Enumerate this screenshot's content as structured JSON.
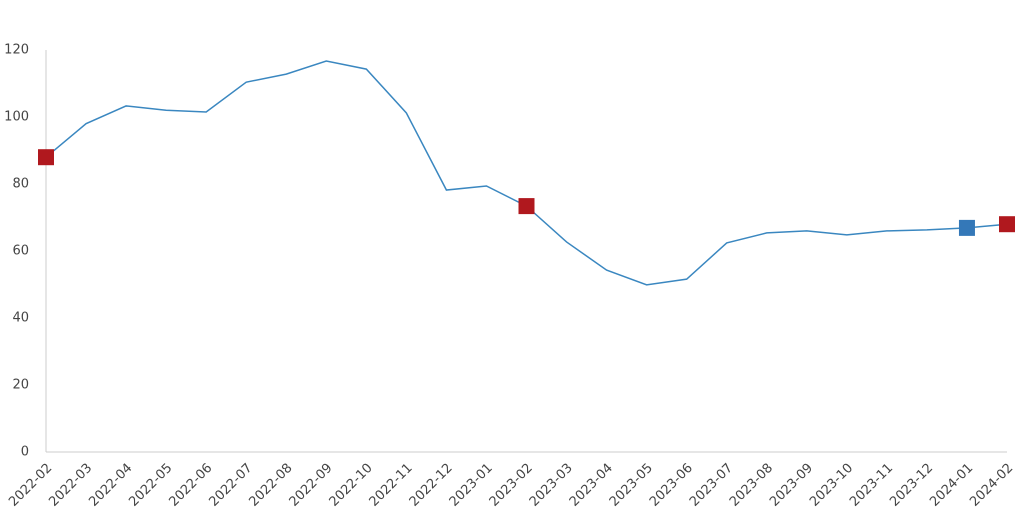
{
  "chart_data": {
    "type": "line",
    "categories": [
      "2022-02",
      "2022-03",
      "2022-04",
      "2022-05",
      "2022-06",
      "2022-07",
      "2022-08",
      "2022-09",
      "2022-10",
      "2022-11",
      "2022-12",
      "2023-01",
      "2023-02",
      "2023-03",
      "2023-04",
      "2023-05",
      "2023-06",
      "2023-07",
      "2023-08",
      "2023-09",
      "2023-10",
      "2023-11",
      "2023-12",
      "2024-01",
      "2024-02"
    ],
    "series": [
      {
        "color": "#3a87c0",
        "values": [
          88,
          98,
          103.3,
          102,
          101.5,
          110.4,
          112.8,
          116.7,
          114.3,
          101.2,
          78.2,
          79.4,
          73.4,
          62.7,
          54.3,
          49.9,
          51.6,
          62.4,
          65.4,
          66,
          64.8,
          66,
          66.3,
          66.9,
          68
        ],
        "marker_colors": [
          "#b0181e",
          null,
          null,
          null,
          null,
          null,
          null,
          null,
          null,
          null,
          null,
          null,
          "#b0181e",
          null,
          null,
          null,
          null,
          null,
          null,
          null,
          null,
          null,
          null,
          "#3478b8",
          "#b0181e"
        ]
      }
    ],
    "ylim": [
      0,
      120
    ],
    "yticks": [
      0,
      20,
      40,
      60,
      80,
      100,
      120
    ],
    "grid": false
  }
}
